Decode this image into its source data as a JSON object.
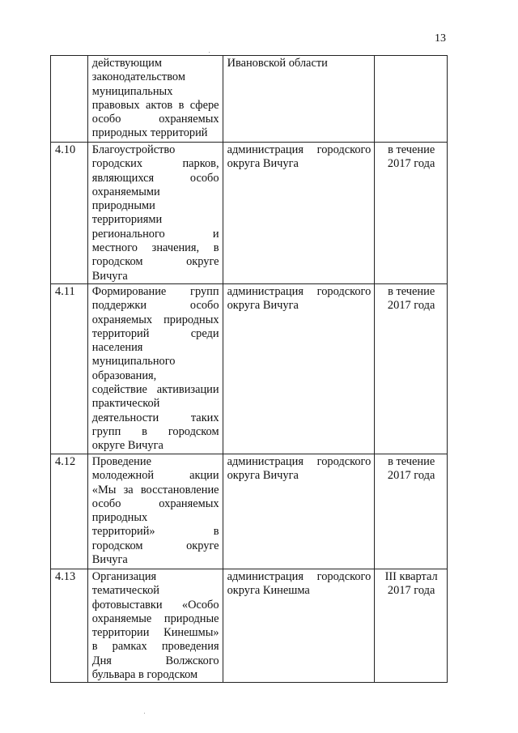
{
  "page_number": "13",
  "rows": [
    {
      "num": "",
      "description": [
        "действующим",
        "законодательством",
        "муниципальных",
        "правовых актов в сфере",
        "особо охраняемых",
        "природных территорий"
      ],
      "responsible": [
        "Ивановской области"
      ],
      "deadline": [],
      "height": 107
    },
    {
      "num": "4.10",
      "description": [
        "Благоустройство",
        "городских парков,",
        "являющихся особо",
        "охраняемыми",
        "природными",
        "территориями",
        "регионального и",
        "местного значения, в",
        "городском округе",
        "Вичуга"
      ],
      "responsible": [
        "администрация городского",
        "округа Вичуга"
      ],
      "deadline": [
        "в течение",
        "2017 года"
      ]
    },
    {
      "num": "4.11",
      "description": [
        "Формирование групп",
        "поддержки особо",
        "охраняемых природных",
        "территорий среди",
        "населения",
        "муниципального",
        "образования,",
        "содействие активизации",
        "практической",
        "деятельности таких",
        "групп в городском",
        "округе Вичуга"
      ],
      "responsible": [
        "администрация городского",
        "округа Вичуга"
      ],
      "deadline": [
        "в течение",
        "2017 года"
      ]
    },
    {
      "num": "4.12",
      "description": [
        "Проведение",
        "молодежной акции",
        "«Мы за восстановление",
        "особо охраняемых",
        "природных",
        "территорий» в",
        "городском округе",
        "Вичуга"
      ],
      "responsible": [
        "администрация городского",
        "округа Вичуга"
      ],
      "deadline": [
        "в течение",
        "2017 года"
      ]
    },
    {
      "num": "4.13",
      "description": [
        "Организация",
        "тематической",
        "фотовыставки «Особо",
        "охраняемые природные",
        "территории Кинешмы»",
        "в рамках проведения",
        "Дня Волжского",
        "бульвара в городском"
      ],
      "responsible": [
        "администрация городского",
        "округа Кинешма"
      ],
      "deadline": [
        "III квартал",
        "2017 года"
      ]
    }
  ]
}
